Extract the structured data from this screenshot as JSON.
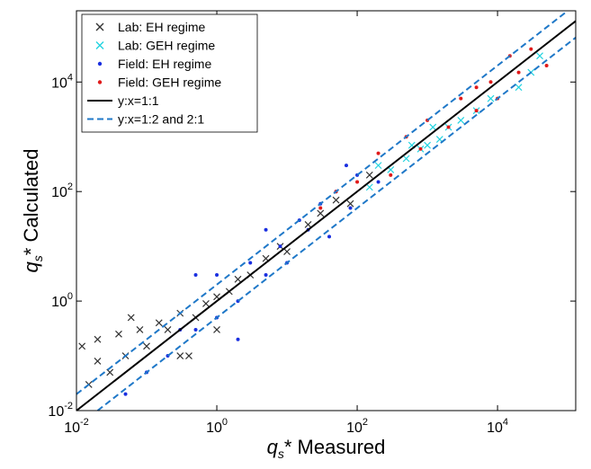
{
  "chart_data": {
    "type": "scatter",
    "log_x": true,
    "log_y": true,
    "xlabel": {
      "symbol": "q",
      "subscript": "s",
      "text": "* Measured"
    },
    "ylabel": {
      "symbol": "q",
      "subscript": "s",
      "text": "* Calculated"
    },
    "xlim": [
      0.01,
      130000
    ],
    "ylim": [
      0.01,
      200000
    ],
    "xticks": [
      {
        "value": 0.01,
        "label": "10",
        "exponent": "-2"
      },
      {
        "value": 1,
        "label": "10",
        "exponent": "0"
      },
      {
        "value": 100,
        "label": "10",
        "exponent": "2"
      },
      {
        "value": 10000,
        "label": "10",
        "exponent": "4"
      }
    ],
    "yticks": [
      {
        "value": 0.01,
        "label": "10",
        "exponent": "-2"
      },
      {
        "value": 1,
        "label": "10",
        "exponent": "0"
      },
      {
        "value": 100,
        "label": "10",
        "exponent": "2"
      },
      {
        "value": 10000,
        "label": "10",
        "exponent": "4"
      }
    ],
    "legend": "top-left",
    "grid": false,
    "series": [
      {
        "name": "Lab: EH regime",
        "color": "#333333",
        "marker": "x",
        "x": [
          0.012,
          0.015,
          0.02,
          0.03,
          0.04,
          0.05,
          0.08,
          0.1,
          0.15,
          0.2,
          0.3,
          0.5,
          0.7,
          1,
          1.5,
          2,
          3,
          5,
          8,
          10,
          20,
          30,
          50,
          80,
          150,
          0.3,
          1,
          0.4,
          0.02,
          0.06
        ],
        "values": [
          0.15,
          0.03,
          0.2,
          0.05,
          0.25,
          0.1,
          0.3,
          0.15,
          0.4,
          0.3,
          0.6,
          0.5,
          0.9,
          1.2,
          1.5,
          2.5,
          3,
          6,
          10,
          8,
          25,
          40,
          70,
          60,
          200,
          0.1,
          0.3,
          0.1,
          0.08,
          0.5
        ]
      },
      {
        "name": "Lab: GEH regime",
        "color": "#22d3e0",
        "marker": "x",
        "x": [
          150,
          200,
          300,
          500,
          800,
          1000,
          1500,
          2000,
          3000,
          5000,
          8000,
          20000,
          40000,
          30000,
          600,
          1200
        ],
        "values": [
          120,
          300,
          250,
          400,
          600,
          700,
          900,
          1500,
          2000,
          3000,
          5000,
          8000,
          30000,
          15000,
          700,
          1500
        ]
      },
      {
        "name": "Field: EH regime",
        "color": "#1a2fe0",
        "marker": "dot",
        "x": [
          0.05,
          0.1,
          0.2,
          0.3,
          0.5,
          1,
          1,
          2,
          3,
          5,
          5,
          8,
          10,
          15,
          20,
          30,
          40,
          50,
          80,
          100,
          0.5,
          2,
          200,
          70
        ],
        "values": [
          0.02,
          0.05,
          0.1,
          0.3,
          0.3,
          0.5,
          3,
          1,
          5,
          3,
          20,
          10,
          5,
          30,
          20,
          60,
          15,
          100,
          50,
          200,
          3,
          0.2,
          150,
          300
        ]
      },
      {
        "name": "Field: GEH regime",
        "color": "#e01a1a",
        "marker": "dot",
        "x": [
          30,
          50,
          100,
          200,
          300,
          500,
          800,
          1000,
          2000,
          3000,
          5000,
          8000,
          10000,
          20000,
          30000,
          50000,
          5000,
          15000
        ],
        "values": [
          50,
          100,
          150,
          500,
          200,
          1000,
          600,
          2000,
          1500,
          5000,
          3000,
          10000,
          5000,
          15000,
          40000,
          20000,
          8000,
          30000
        ]
      },
      {
        "name": "y:x=1:1",
        "color": "#000000",
        "marker": "line",
        "dash": false,
        "x": [
          0.01,
          130000
        ],
        "values": [
          0.01,
          130000
        ]
      },
      {
        "name": "y:x=1:2 and 2:1",
        "color": "#1f78c8",
        "marker": "line",
        "dash": true,
        "x": [
          0.01,
          100000,
          null,
          0.02,
          130000
        ],
        "values": [
          0.02,
          200000,
          null,
          0.01,
          65000
        ]
      }
    ]
  }
}
